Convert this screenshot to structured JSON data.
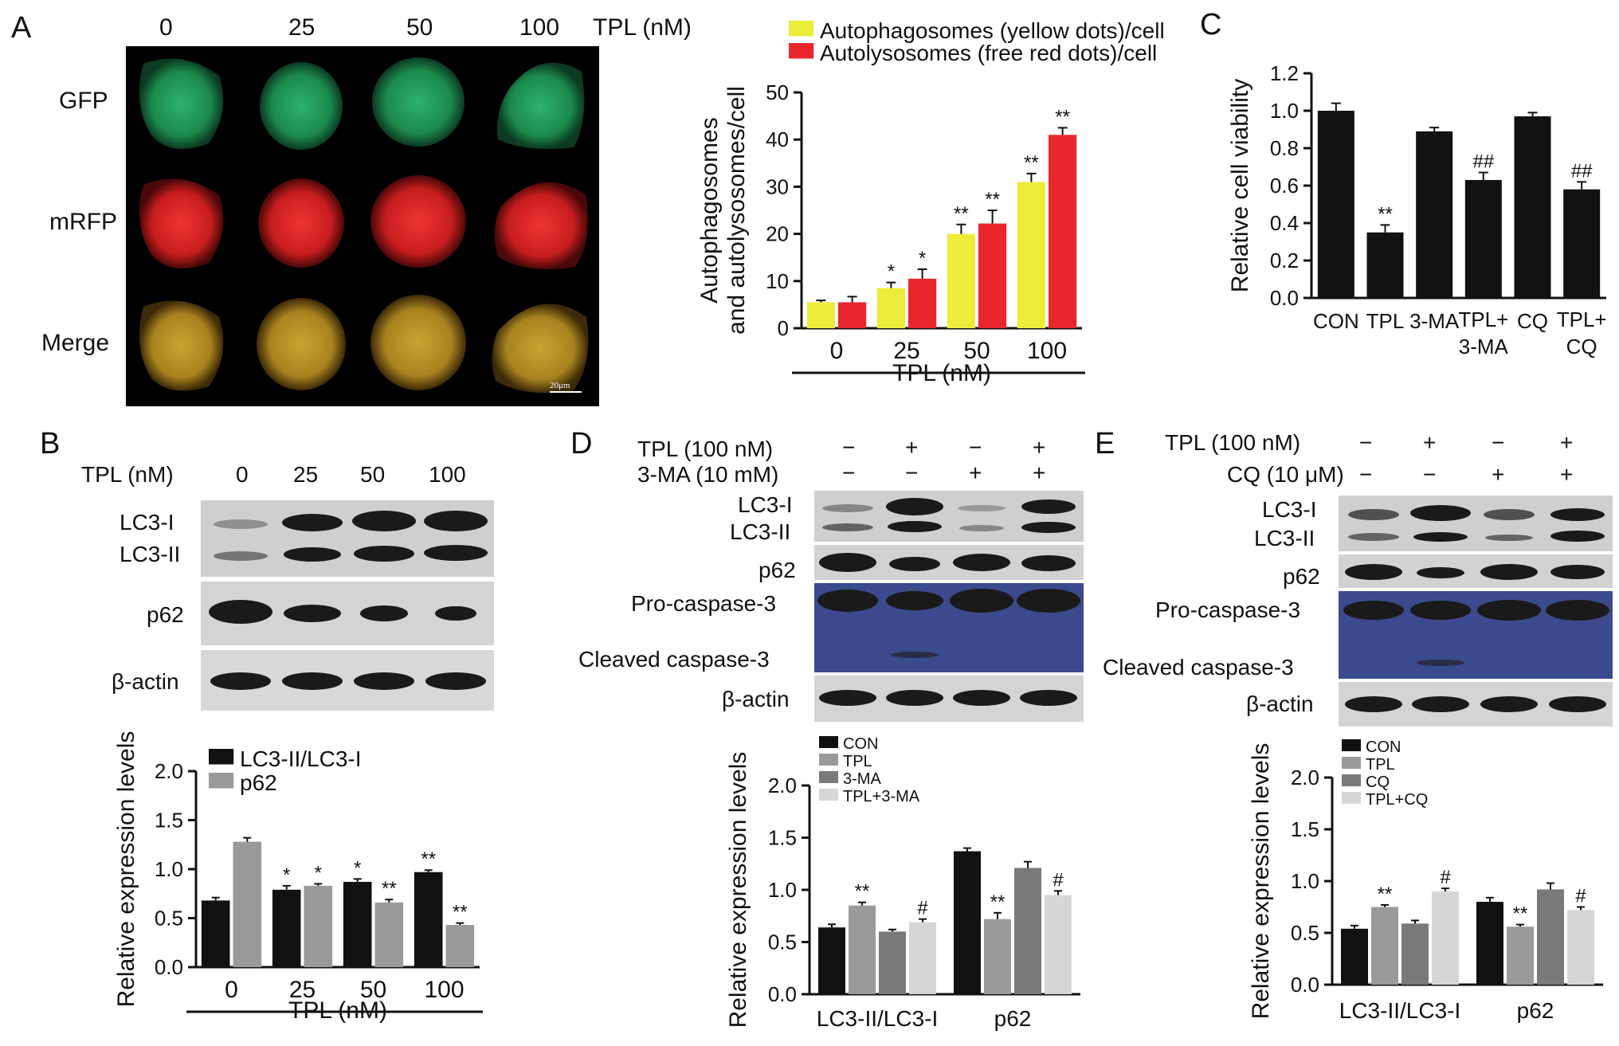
{
  "panels": {
    "A": "A",
    "B": "B",
    "C": "C",
    "D": "D",
    "E": "E"
  },
  "panelA": {
    "concentrations": [
      "0",
      "25",
      "50",
      "100"
    ],
    "unit_label": "TPL (nM)",
    "rows": [
      "GFP",
      "mRFP",
      "Merge"
    ],
    "scale_bar": "20μm"
  },
  "panelB_blot": {
    "header": "TPL (nM)",
    "concentrations": [
      "0",
      "25",
      "50",
      "100"
    ],
    "rows": [
      "LC3-I",
      "LC3-II",
      "p62",
      "β-actin"
    ]
  },
  "panelD_blot": {
    "treatments": [
      {
        "label": "TPL (100 nM)",
        "signs": [
          "−",
          "+",
          "−",
          "+"
        ]
      },
      {
        "label": "3-MA (10 mM)",
        "signs": [
          "−",
          "−",
          "+",
          "+"
        ]
      }
    ],
    "rows": [
      "LC3-I",
      "LC3-II",
      "p62",
      "Pro-caspase-3",
      "Cleaved caspase-3",
      "β-actin"
    ]
  },
  "panelE_blot": {
    "treatments": [
      {
        "label": "TPL (100 nM)",
        "signs": [
          "−",
          "+",
          "−",
          "+"
        ]
      },
      {
        "label": "CQ (10 μM)",
        "signs": [
          "−",
          "−",
          "+",
          "+"
        ]
      }
    ],
    "rows": [
      "LC3-I",
      "LC3-II",
      "p62",
      "Pro-caspase-3",
      "Cleaved caspase-3",
      "β-actin"
    ]
  },
  "colors": {
    "yellow": "#ecec3a",
    "red": "#e8262c",
    "black": "#111111",
    "grey1": "#9a9a9a",
    "grey2": "#7a7a7a",
    "grey3": "#d6d6d6"
  },
  "chart_data": [
    {
      "id": "A-chart",
      "type": "bar",
      "categories": [
        "0",
        "25",
        "50",
        "100"
      ],
      "xlabel": "TPL (nM)",
      "ylabel": "Autophagosomes and autolysosomes/cell",
      "ylim": [
        0,
        50
      ],
      "yticks": [
        "0",
        "10",
        "20",
        "30",
        "40",
        "50"
      ],
      "legend": "top",
      "series": [
        {
          "name": "Autophagosomes (yellow dots)/cell",
          "color": "#ecec3a",
          "values": [
            5.5,
            8.5,
            20,
            31
          ],
          "errors": [
            0.4,
            1.2,
            2,
            1.8
          ],
          "marks": [
            "",
            "*",
            "**",
            "**"
          ]
        },
        {
          "name": "Autolysosomes (free red dots)/cell",
          "color": "#e8262c",
          "values": [
            5.5,
            10.5,
            22.2,
            41
          ],
          "errors": [
            1.2,
            2,
            2.8,
            1.5
          ],
          "marks": [
            "",
            "*",
            "**",
            "**"
          ]
        }
      ]
    },
    {
      "id": "B-chart",
      "type": "bar",
      "categories": [
        "0",
        "25",
        "50",
        "100"
      ],
      "xlabel": "TPL (nM)",
      "ylabel": "Relative expression levels",
      "ylim": [
        0,
        2.0
      ],
      "yticks": [
        "0.0",
        "0.5",
        "1.0",
        "1.5",
        "2.0"
      ],
      "legend": "top-left",
      "series": [
        {
          "name": "LC3-II/LC3-I",
          "color": "#111111",
          "values": [
            0.68,
            0.79,
            0.87,
            0.97
          ],
          "errors": [
            0.03,
            0.04,
            0.03,
            0.02
          ],
          "marks": [
            "",
            "*",
            "*",
            "**"
          ]
        },
        {
          "name": "p62",
          "color": "#9a9a9a",
          "values": [
            1.28,
            0.83,
            0.66,
            0.43
          ],
          "errors": [
            0.04,
            0.02,
            0.03,
            0.02
          ],
          "marks": [
            "",
            "*",
            "**",
            "**"
          ]
        }
      ]
    },
    {
      "id": "C-chart",
      "type": "bar",
      "categories": [
        "CON",
        "TPL",
        "3-MA",
        "TPL+ 3-MA",
        "CQ",
        "TPL+ CQ"
      ],
      "xlabel": "",
      "ylabel": "Relative cell viability",
      "ylim": [
        0,
        1.2
      ],
      "yticks": [
        "0.0",
        "0.2",
        "0.4",
        "0.6",
        "0.8",
        "1.0",
        "1.2"
      ],
      "series": [
        {
          "name": "",
          "color": "#111111",
          "values": [
            1.0,
            0.35,
            0.89,
            0.63,
            0.97,
            0.58
          ],
          "errors": [
            0.04,
            0.04,
            0.02,
            0.04,
            0.02,
            0.04
          ],
          "marks": [
            "",
            "**",
            "",
            "##",
            "",
            "##"
          ]
        }
      ]
    },
    {
      "id": "D-chart",
      "type": "bar",
      "categories": [
        "LC3-II/LC3-I",
        "p62"
      ],
      "xlabel": "",
      "ylabel": "Relative expression levels",
      "ylim": [
        0,
        2.0
      ],
      "yticks": [
        "0.0",
        "0.5",
        "1.0",
        "1.5",
        "2.0"
      ],
      "legend": "top-left",
      "series": [
        {
          "name": "CON",
          "color": "#111111",
          "values": [
            0.64,
            1.37
          ],
          "errors": [
            0.03,
            0.03
          ],
          "marks": [
            "",
            ""
          ]
        },
        {
          "name": "TPL",
          "color": "#9a9a9a",
          "values": [
            0.85,
            0.72
          ],
          "errors": [
            0.03,
            0.06
          ],
          "marks": [
            "**",
            "**"
          ]
        },
        {
          "name": "3-MA",
          "color": "#7a7a7a",
          "values": [
            0.6,
            1.21
          ],
          "errors": [
            0.02,
            0.06
          ],
          "marks": [
            "",
            ""
          ]
        },
        {
          "name": "TPL+3-MA",
          "color": "#d6d6d6",
          "values": [
            0.69,
            0.95
          ],
          "errors": [
            0.03,
            0.04
          ],
          "marks": [
            "#",
            "#"
          ]
        }
      ]
    },
    {
      "id": "E-chart",
      "type": "bar",
      "categories": [
        "LC3-II/LC3-I",
        "p62"
      ],
      "xlabel": "",
      "ylabel": "Relative expression levels",
      "ylim": [
        0,
        2.0
      ],
      "yticks": [
        "0.0",
        "0.5",
        "1.0",
        "1.5",
        "2.0"
      ],
      "legend": "top-left",
      "series": [
        {
          "name": "CON",
          "color": "#111111",
          "values": [
            0.54,
            0.8
          ],
          "errors": [
            0.03,
            0.04
          ],
          "marks": [
            "",
            ""
          ]
        },
        {
          "name": "TPL",
          "color": "#9a9a9a",
          "values": [
            0.75,
            0.56
          ],
          "errors": [
            0.02,
            0.02
          ],
          "marks": [
            "**",
            "**"
          ]
        },
        {
          "name": "CQ",
          "color": "#7a7a7a",
          "values": [
            0.59,
            0.92
          ],
          "errors": [
            0.03,
            0.06
          ],
          "marks": [
            "",
            ""
          ]
        },
        {
          "name": "TPL+CQ",
          "color": "#d6d6d6",
          "values": [
            0.9,
            0.72
          ],
          "errors": [
            0.03,
            0.03
          ],
          "marks": [
            "#",
            "#"
          ]
        }
      ]
    }
  ]
}
